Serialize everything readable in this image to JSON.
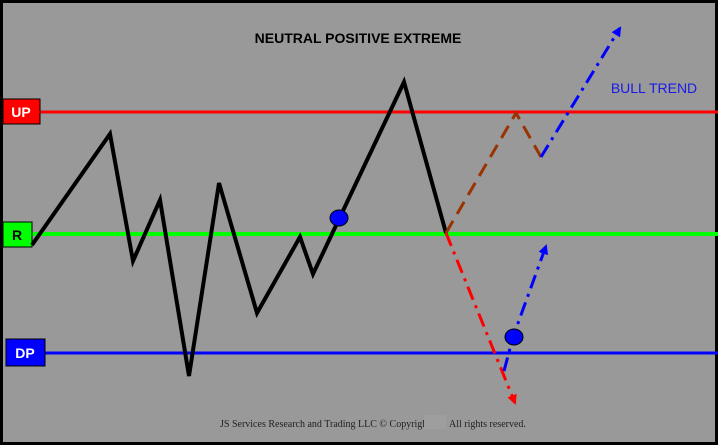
{
  "title": "NEUTRAL POSITIVE EXTREME",
  "levels": {
    "up": {
      "label": "UP",
      "color": "#ff0000",
      "tag_color": "#ff0000"
    },
    "r": {
      "label": "R",
      "color": "#00ff00",
      "tag_color": "#00ff00"
    },
    "dp": {
      "label": "DP",
      "color": "#0000ff",
      "tag_color": "#0000ff"
    }
  },
  "annotations": {
    "bull_trend": "BULL TREND"
  },
  "footer": {
    "left": "JS Services Research and Trading LLC © Copyright",
    "right": "All rights reserved."
  },
  "colors": {
    "background": "#999999",
    "frame": "#000000",
    "price_line": "#000000",
    "marker": "#0000ff",
    "brown_path": "#993300",
    "red_path": "#ff0000",
    "blue_path": "#0000ff"
  }
}
